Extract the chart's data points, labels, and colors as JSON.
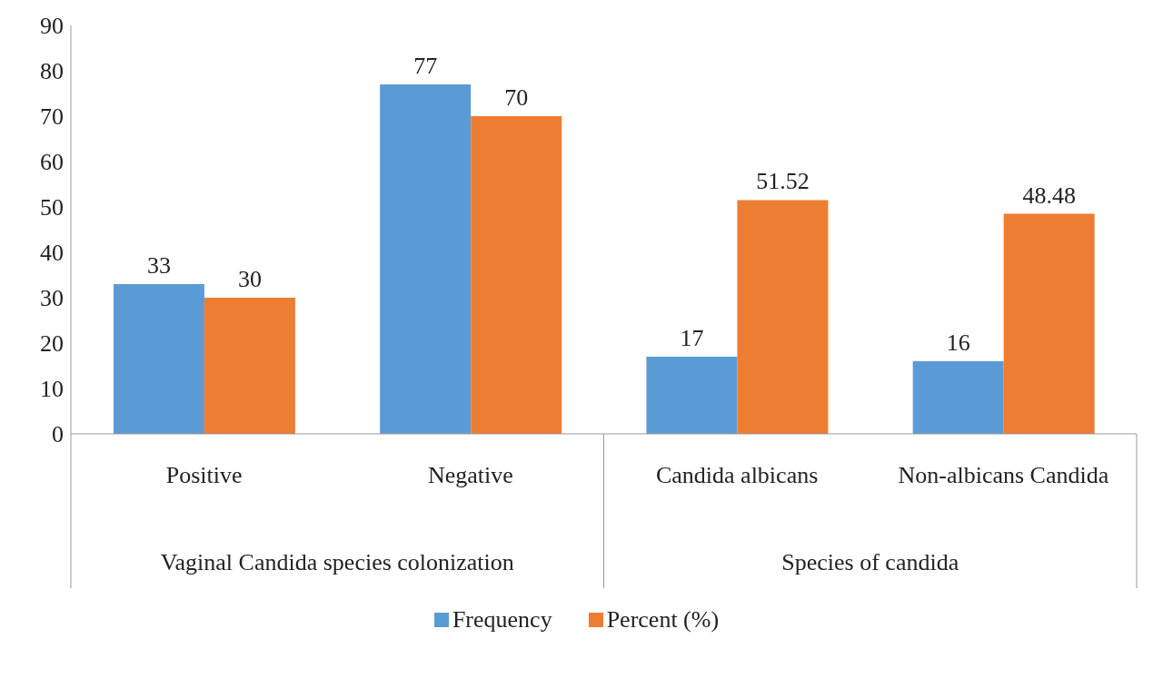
{
  "chart_data": {
    "type": "bar",
    "categories": [
      "Positive",
      "Negative",
      "Candida albicans",
      "Non-albicans Candida"
    ],
    "series": [
      {
        "name": "Frequency",
        "color": "#5b9bd5",
        "values": [
          33,
          77,
          17,
          16
        ]
      },
      {
        "name": "Percent (%)",
        "color": "#ed7d31",
        "values": [
          30,
          70,
          51.52,
          48.48
        ]
      }
    ],
    "annotations": [
      "Vaginal Candida species colonization",
      "Species of candida"
    ],
    "ylim": [
      0,
      90
    ],
    "yticks": [
      0,
      10,
      20,
      30,
      40,
      50,
      60,
      70,
      80,
      90
    ],
    "data_labels": true,
    "grid": false,
    "legend": "bottom"
  }
}
